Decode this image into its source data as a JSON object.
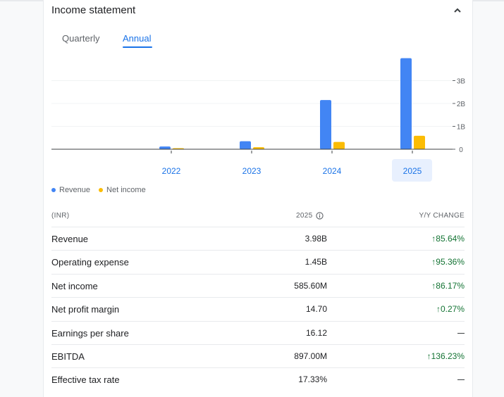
{
  "title": "Income statement",
  "tabs": [
    "Quarterly",
    "Annual"
  ],
  "active_tab": "Annual",
  "chart_data": {
    "type": "bar",
    "categories": [
      "2022",
      "2023",
      "2024",
      "2025"
    ],
    "series": [
      {
        "name": "Revenue",
        "values": [
          0.12,
          0.35,
          2.15,
          3.98
        ],
        "color": "#4285f4"
      },
      {
        "name": "Net income",
        "values": [
          0.02,
          0.09,
          0.32,
          0.59
        ],
        "color": "#fbbc04"
      }
    ],
    "yticks": [
      "0",
      "1B",
      "2B",
      "3B"
    ],
    "ylim": [
      0,
      4
    ],
    "selected_category": "2025"
  },
  "legend": {
    "revenue": "Revenue",
    "net_income": "Net income"
  },
  "table": {
    "currency_header": "(INR)",
    "year_header": "2025",
    "change_header": "Y/Y CHANGE",
    "rows": [
      {
        "label": "Revenue",
        "value": "3.98B",
        "change": "85.64%"
      },
      {
        "label": "Operating expense",
        "value": "1.45B",
        "change": "95.36%"
      },
      {
        "label": "Net income",
        "value": "585.60M",
        "change": "86.17%"
      },
      {
        "label": "Net profit margin",
        "value": "14.70",
        "change": "0.27%"
      },
      {
        "label": "Earnings per share",
        "value": "16.12",
        "change": ""
      },
      {
        "label": "EBITDA",
        "value": "897.00M",
        "change": "136.23%"
      },
      {
        "label": "Effective tax rate",
        "value": "17.33%",
        "change": ""
      }
    ]
  },
  "icons": {
    "collapse": "chevron-up-icon",
    "info": "info-icon",
    "up_arrow": "arrow-up-icon"
  }
}
